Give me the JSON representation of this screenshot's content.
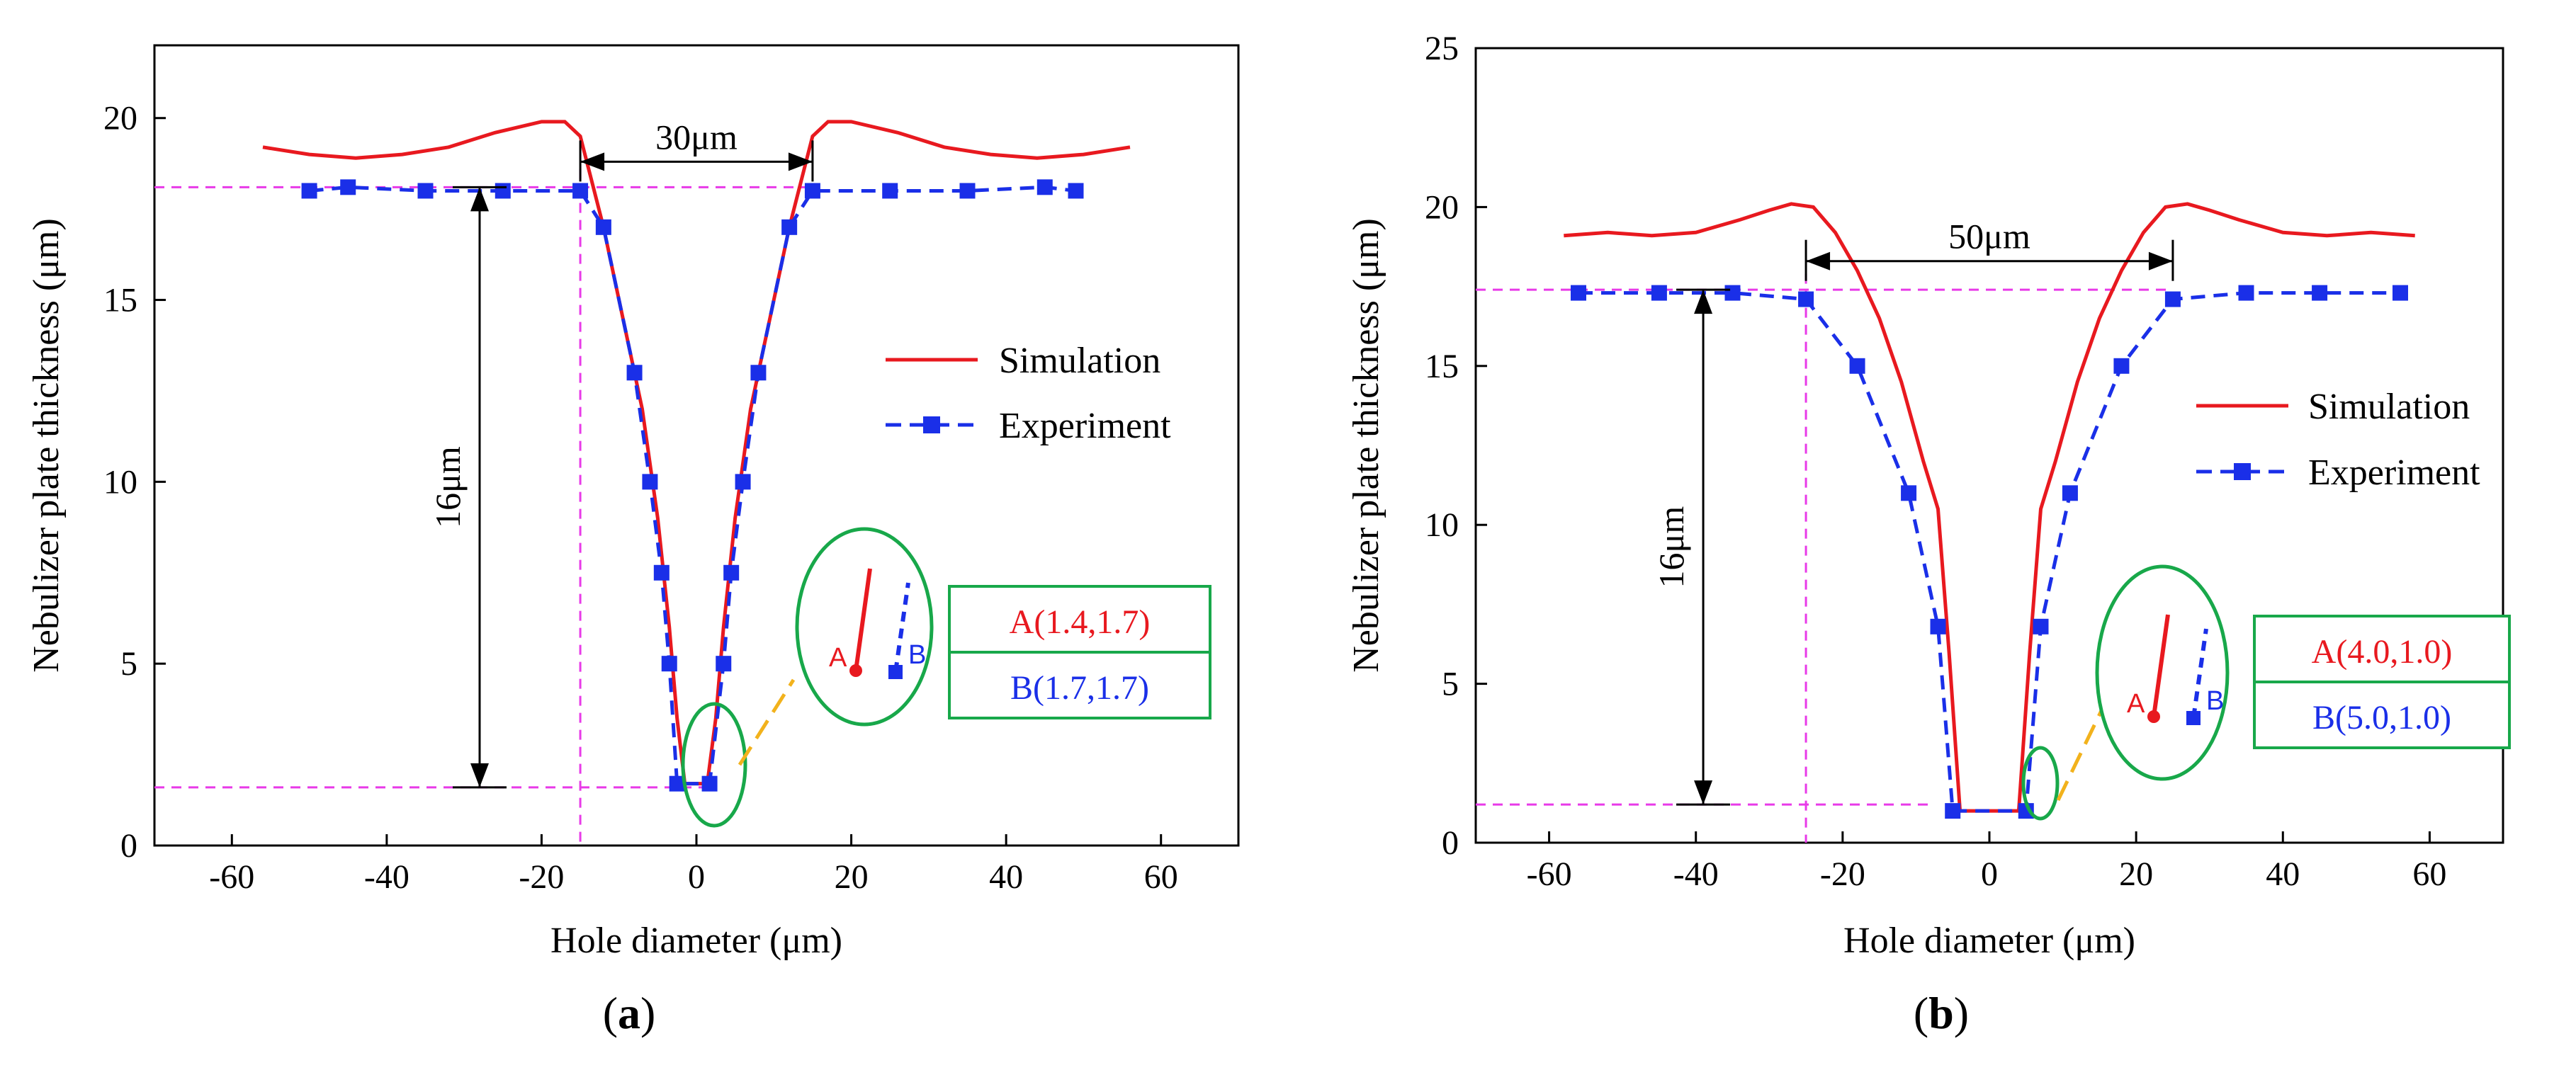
{
  "chart_data": [
    {
      "type": "line",
      "panel_label": "(a)",
      "panel_label_letter": "a",
      "xlabel": "Hole diameter (μm)",
      "ylabel": "Nebulizer plate thickness (μm)",
      "xlim": [
        -70,
        70
      ],
      "ylim": [
        0,
        22
      ],
      "x_ticks": [
        -60,
        -40,
        -20,
        0,
        20,
        40,
        60
      ],
      "x_tick_labels": [
        "-60",
        "-40",
        "-20",
        "0",
        "20",
        "40",
        "60"
      ],
      "y_ticks": [
        0,
        5,
        10,
        15,
        20
      ],
      "y_tick_labels": [
        "0",
        "5",
        "10",
        "15",
        "20"
      ],
      "legend": {
        "position": "right-middle",
        "entries": [
          "Simulation",
          "Experiment"
        ]
      },
      "series": [
        {
          "name": "Simulation",
          "color": "#e8191f",
          "style": "solid",
          "x": [
            -56,
            -50,
            -44,
            -38,
            -32,
            -26,
            -20,
            -17,
            -15,
            -12,
            -9,
            -7,
            -5,
            -3.5,
            -2.5,
            -1.5,
            1.4,
            2.5,
            3.5,
            5,
            7,
            9,
            12,
            15,
            17,
            20,
            26,
            32,
            38,
            44,
            50,
            56
          ],
          "y": [
            19.2,
            19.0,
            18.9,
            19.0,
            19.2,
            19.6,
            19.9,
            19.9,
            19.5,
            17.0,
            14.0,
            12.0,
            9.0,
            6.0,
            3.5,
            1.7,
            1.7,
            3.5,
            6.0,
            9.0,
            12.0,
            14.0,
            17.0,
            19.5,
            19.9,
            19.9,
            19.6,
            19.2,
            19.0,
            18.9,
            19.0,
            19.2
          ]
        },
        {
          "name": "Experiment",
          "color": "#1a2fe8",
          "style": "dashed",
          "x": [
            -50,
            -45,
            -35,
            -25,
            -15,
            -12,
            -8,
            -6,
            -4.5,
            -3.5,
            -2.5,
            1.7,
            3.5,
            4.5,
            6,
            8,
            12,
            15,
            25,
            35,
            45,
            49
          ],
          "y": [
            18.0,
            18.1,
            18.0,
            18.0,
            18.0,
            17.0,
            13.0,
            10.0,
            7.5,
            5.0,
            1.7,
            1.7,
            5.0,
            7.5,
            10.0,
            13.0,
            17.0,
            18.0,
            18.0,
            18.0,
            18.1,
            18.0
          ]
        }
      ],
      "annotations": {
        "width_label": "30μm",
        "width_range_x": [
          -15,
          15
        ],
        "width_y": 18.8,
        "guide_y_top": 18.1,
        "guide_y_bottom": 1.6,
        "guide_x": -15,
        "height_label": "16μm",
        "height_arrow_x": -28,
        "point_a_label": "A(1.4,1.7)",
        "point_b_label": "B(1.7,1.7)",
        "marker_a": "A",
        "marker_b": "B"
      }
    },
    {
      "type": "line",
      "panel_label": "(b)",
      "panel_label_letter": "b",
      "xlabel": "Hole diameter (μm)",
      "ylabel": "Nebulizer plate thickness (μm)",
      "xlim": [
        -70,
        70
      ],
      "ylim": [
        0,
        25
      ],
      "x_ticks": [
        -60,
        -40,
        -20,
        0,
        20,
        40,
        60
      ],
      "x_tick_labels": [
        "-60",
        "-40",
        "-20",
        "0",
        "20",
        "40",
        "60"
      ],
      "y_ticks": [
        0,
        5,
        10,
        15,
        20,
        25
      ],
      "y_tick_labels": [
        "0",
        "5",
        "10",
        "15",
        "20",
        "25"
      ],
      "legend": {
        "position": "right-middle",
        "entries": [
          "Simulation",
          "Experiment"
        ]
      },
      "series": [
        {
          "name": "Simulation",
          "color": "#e8191f",
          "style": "solid",
          "x": [
            -58,
            -52,
            -46,
            -40,
            -34,
            -30,
            -27,
            -24,
            -21,
            -18,
            -15,
            -12,
            -9,
            -7,
            -5.5,
            -4,
            4,
            5.5,
            7,
            9,
            12,
            15,
            18,
            21,
            24,
            27,
            30,
            34,
            40,
            46,
            52,
            58
          ],
          "y": [
            19.1,
            19.2,
            19.1,
            19.2,
            19.6,
            19.9,
            20.1,
            20.0,
            19.2,
            18.0,
            16.5,
            14.5,
            12.0,
            10.5,
            6.0,
            1.0,
            1.0,
            6.0,
            10.5,
            12.0,
            14.5,
            16.5,
            18.0,
            19.2,
            20.0,
            20.1,
            19.9,
            19.6,
            19.2,
            19.1,
            19.2,
            19.1
          ]
        },
        {
          "name": "Experiment",
          "color": "#1a2fe8",
          "style": "dashed",
          "x": [
            -56,
            -45,
            -35,
            -25,
            -18,
            -11,
            -7,
            -5,
            5,
            7,
            11,
            18,
            25,
            35,
            45,
            56
          ],
          "y": [
            17.3,
            17.3,
            17.3,
            17.1,
            15.0,
            11.0,
            6.8,
            1.0,
            1.0,
            6.8,
            11.0,
            15.0,
            17.1,
            17.3,
            17.3,
            17.3
          ]
        }
      ],
      "annotations": {
        "width_label": "50μm",
        "width_range_x": [
          -25,
          25
        ],
        "width_y": 18.3,
        "guide_y_top": 17.4,
        "guide_y_bottom": 1.2,
        "guide_x": -25,
        "height_label": "16μm",
        "height_arrow_x": -39,
        "point_a_label": "A(4.0,1.0)",
        "point_b_label": "B(5.0,1.0)",
        "marker_a": "A",
        "marker_b": "B"
      }
    }
  ]
}
